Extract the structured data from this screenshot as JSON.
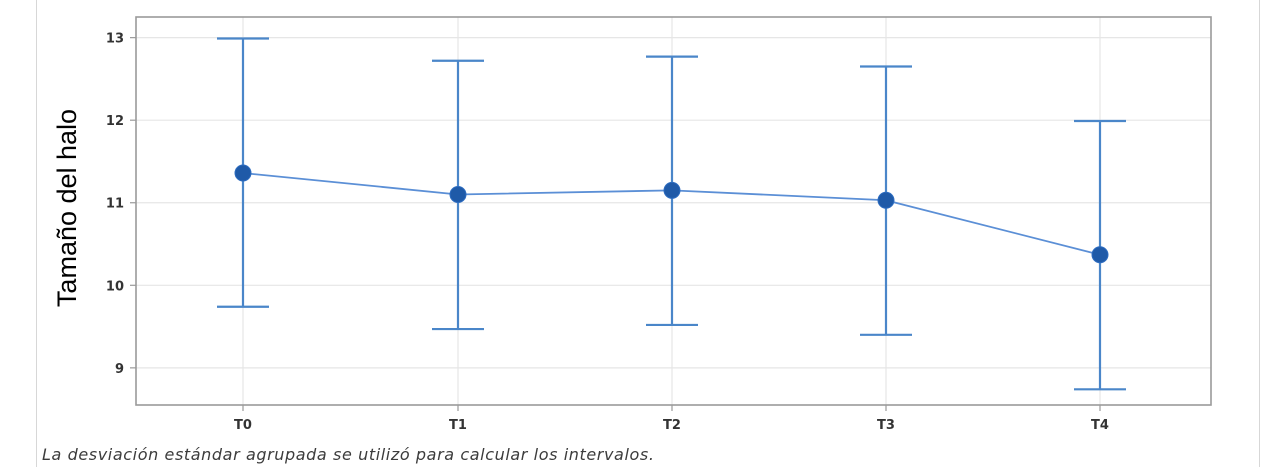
{
  "chart_data": {
    "type": "line",
    "title": "",
    "xlabel": "",
    "ylabel": "Tamaño del halo",
    "categories": [
      "T0",
      "T1",
      "T2",
      "T3",
      "T4"
    ],
    "series": [
      {
        "values": [
          11.36,
          11.1,
          11.15,
          11.03,
          10.37
        ],
        "lower": [
          9.74,
          9.47,
          9.52,
          9.4,
          8.74
        ],
        "upper": [
          12.99,
          12.72,
          12.77,
          12.65,
          11.99
        ]
      }
    ],
    "ylim": [
      8.55,
      13.25
    ],
    "yticks": [
      9,
      10,
      11,
      12,
      13
    ],
    "grid": true,
    "colors": {
      "line": "#5b8fd6",
      "errorbar": "#4a86c9",
      "marker": "#1f5aa8",
      "grid": "#e6e6e6",
      "frame": "#9a9a9a"
    }
  },
  "footnote": "La desviación estándar agrupada se utilizó para calcular los intervalos."
}
